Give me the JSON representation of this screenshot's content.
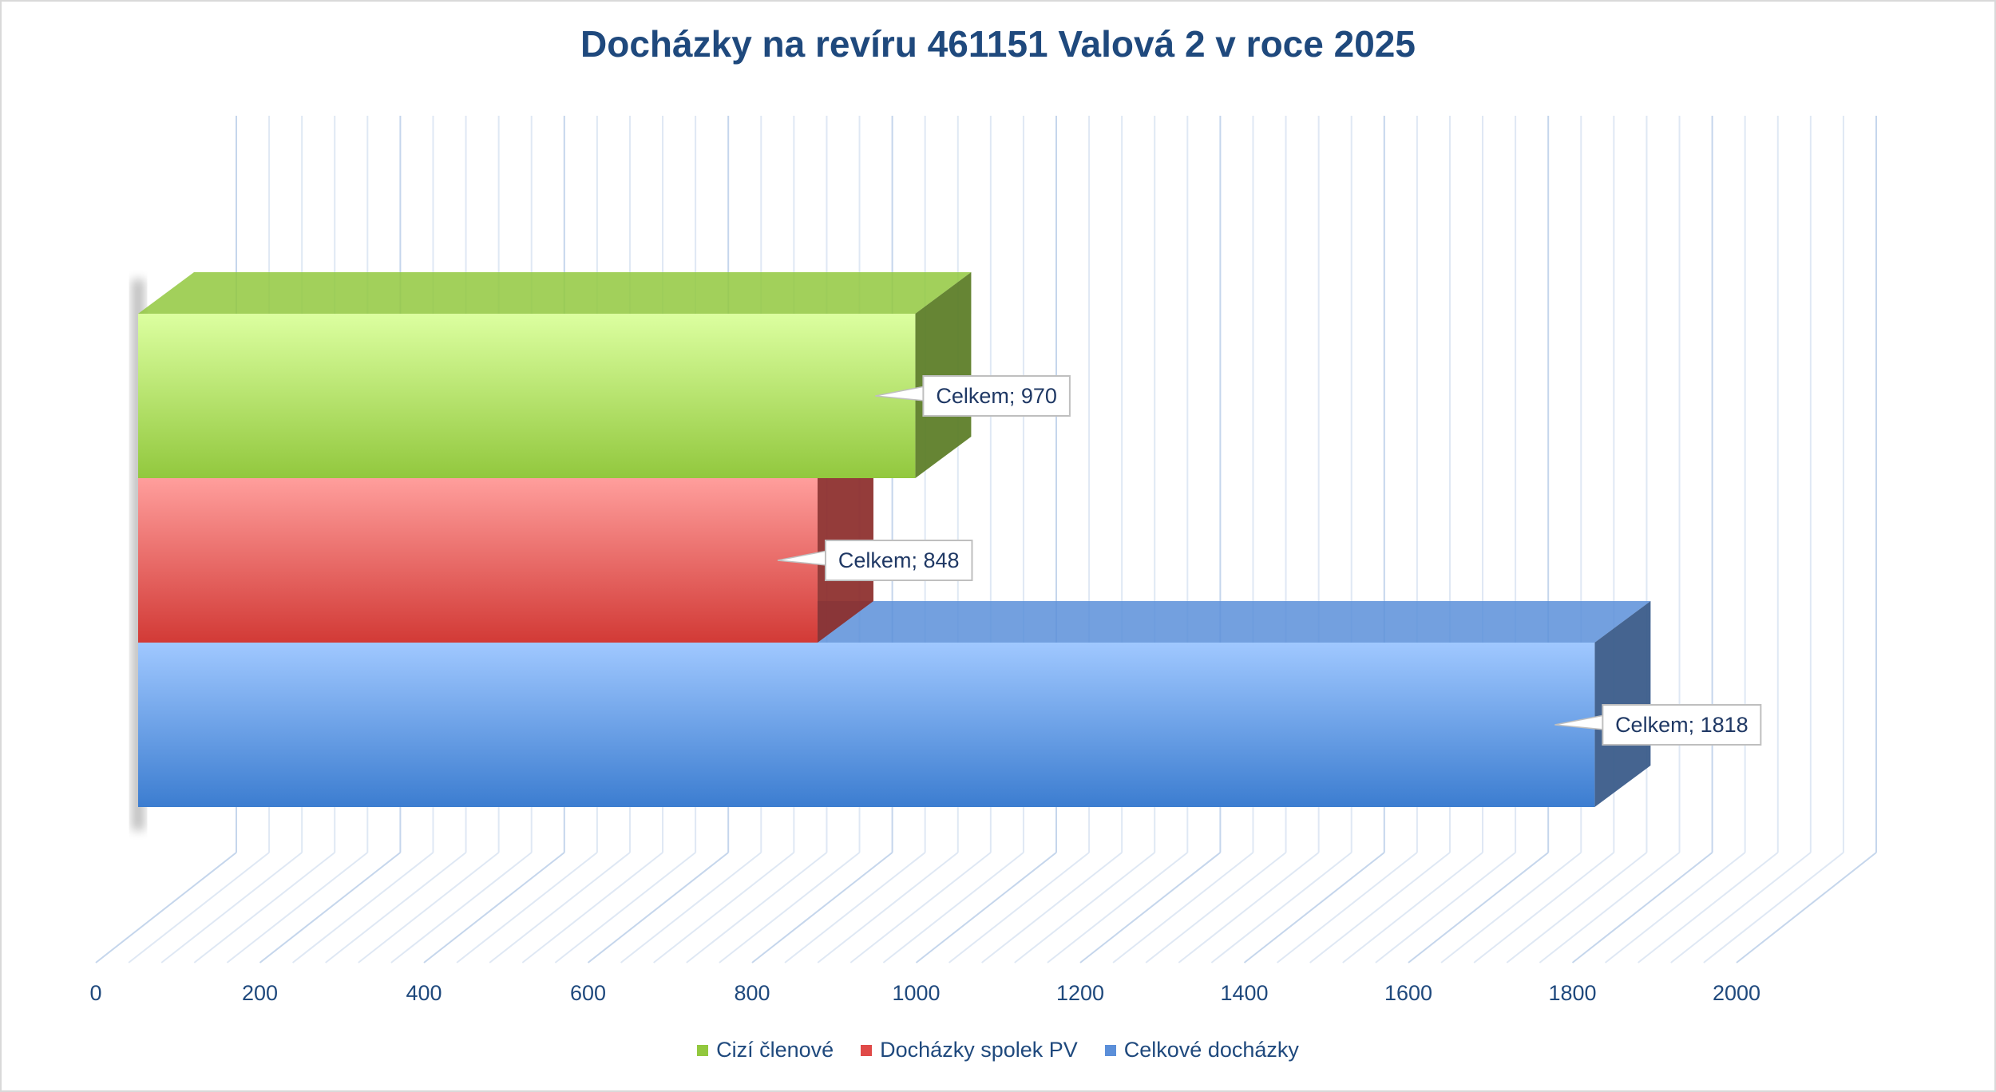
{
  "chart_data": {
    "type": "bar",
    "orientation": "horizontal",
    "title": "Docházky na revíru 461151 Valová 2 v roce 2025",
    "categories": [
      "Celkem"
    ],
    "series": [
      {
        "name": "Cizí členové",
        "values": [
          970
        ],
        "color": "#92c83e",
        "label": "Celkem; 970"
      },
      {
        "name": "Docházky spolek PV",
        "values": [
          848
        ],
        "color": "#e04a48",
        "label": "Celkem; 848"
      },
      {
        "name": "Celkové docházky",
        "values": [
          1818
        ],
        "color": "#5b8fd9",
        "label": "Celkem; 1818"
      }
    ],
    "xlim": [
      0,
      2000
    ],
    "x_ticks": [
      "0",
      "200",
      "400",
      "600",
      "800",
      "1000",
      "1200",
      "1400",
      "1600",
      "1800",
      "2000"
    ],
    "grid": true,
    "legend_position": "bottom",
    "style": "3d"
  }
}
